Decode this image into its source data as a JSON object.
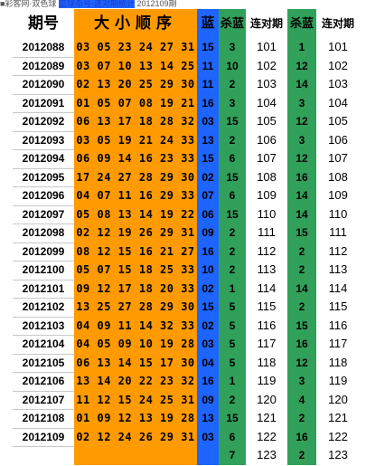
{
  "top_text": {
    "part1": "■彩客网·双色球",
    "part2": "蓝球杀号·连对期统计",
    "part3": "2012109期"
  },
  "headers": {
    "period": "期号",
    "nums": "大小顺序",
    "blue": "蓝",
    "kill1": "杀蓝",
    "seq1": "连对期",
    "kill2": "杀蓝",
    "seq2": "连对期"
  },
  "colors": {
    "orange": "#FF9A00",
    "blue": "#1E64FF",
    "green": "#31A05A"
  },
  "rows": [
    {
      "period": "2012088",
      "nums": "03 05 23 24 27 31",
      "blue": "15",
      "kill1": "3",
      "seq1": "101",
      "kill2": "1",
      "seq2": "101"
    },
    {
      "period": "2012089",
      "nums": "03 07 10 13 14 25",
      "blue": "11",
      "kill1": "10",
      "seq1": "102",
      "kill2": "12",
      "seq2": "102"
    },
    {
      "period": "2012090",
      "nums": "02 13 20 25 29 30",
      "blue": "11",
      "kill1": "2",
      "seq1": "103",
      "kill2": "14",
      "seq2": "103"
    },
    {
      "period": "2012091",
      "nums": "01 05 07 08 19 21",
      "blue": "16",
      "kill1": "3",
      "seq1": "104",
      "kill2": "3",
      "seq2": "104"
    },
    {
      "period": "2012092",
      "nums": "06 13 17 18 28 32",
      "blue": "03",
      "kill1": "15",
      "seq1": "105",
      "kill2": "12",
      "seq2": "105"
    },
    {
      "period": "2012093",
      "nums": "03 05 19 21 24 33",
      "blue": "13",
      "kill1": "2",
      "seq1": "106",
      "kill2": "3",
      "seq2": "106"
    },
    {
      "period": "2012094",
      "nums": "06 09 14 16 23 33",
      "blue": "15",
      "kill1": "6",
      "seq1": "107",
      "kill2": "12",
      "seq2": "107"
    },
    {
      "period": "2012095",
      "nums": "17 24 27 28 29 30",
      "blue": "02",
      "kill1": "15",
      "seq1": "108",
      "kill2": "16",
      "seq2": "108"
    },
    {
      "period": "2012096",
      "nums": "04 07 11 16 29 33",
      "blue": "07",
      "kill1": "6",
      "seq1": "109",
      "kill2": "14",
      "seq2": "109"
    },
    {
      "period": "2012097",
      "nums": "05 08 13 14 19 22",
      "blue": "06",
      "kill1": "15",
      "seq1": "110",
      "kill2": "14",
      "seq2": "110"
    },
    {
      "period": "2012098",
      "nums": "02 12 19 26 29 31",
      "blue": "09",
      "kill1": "2",
      "seq1": "111",
      "kill2": "15",
      "seq2": "111"
    },
    {
      "period": "2012099",
      "nums": "08 12 15 16 21 27",
      "blue": "16",
      "kill1": "2",
      "seq1": "112",
      "kill2": "2",
      "seq2": "112"
    },
    {
      "period": "2012100",
      "nums": "05 07 15 18 25 33",
      "blue": "10",
      "kill1": "2",
      "seq1": "113",
      "kill2": "2",
      "seq2": "113"
    },
    {
      "period": "2012101",
      "nums": "09 12 17 18 20 33",
      "blue": "02",
      "kill1": "1",
      "seq1": "114",
      "kill2": "14",
      "seq2": "114"
    },
    {
      "period": "2012102",
      "nums": "13 25 27 28 29 30",
      "blue": "15",
      "kill1": "5",
      "seq1": "115",
      "kill2": "2",
      "seq2": "115"
    },
    {
      "period": "2012103",
      "nums": "04 09 11 14 32 33",
      "blue": "02",
      "kill1": "5",
      "seq1": "116",
      "kill2": "15",
      "seq2": "116"
    },
    {
      "period": "2012104",
      "nums": "04 05 09 10 19 28",
      "blue": "03",
      "kill1": "5",
      "seq1": "117",
      "kill2": "16",
      "seq2": "117"
    },
    {
      "period": "2012105",
      "nums": "06 13 14 15 17 30",
      "blue": "04",
      "kill1": "5",
      "seq1": "118",
      "kill2": "12",
      "seq2": "118"
    },
    {
      "period": "2012106",
      "nums": "13 14 20 22 23 32",
      "blue": "16",
      "kill1": "1",
      "seq1": "119",
      "kill2": "3",
      "seq2": "119"
    },
    {
      "period": "2012107",
      "nums": "11 12 15 24 25 31",
      "blue": "09",
      "kill1": "2",
      "seq1": "120",
      "kill2": "4",
      "seq2": "120"
    },
    {
      "period": "2012108",
      "nums": "01 09 12 13 19 28",
      "blue": "13",
      "kill1": "15",
      "seq1": "121",
      "kill2": "2",
      "seq2": "121"
    },
    {
      "period": "2012109",
      "nums": "02 12 24 26 29 31",
      "blue": "03",
      "kill1": "6",
      "seq1": "122",
      "kill2": "16",
      "seq2": "122"
    },
    {
      "period": "",
      "nums": "",
      "blue": "",
      "kill1": "7",
      "seq1": "123",
      "kill2": "2",
      "seq2": "123"
    }
  ]
}
